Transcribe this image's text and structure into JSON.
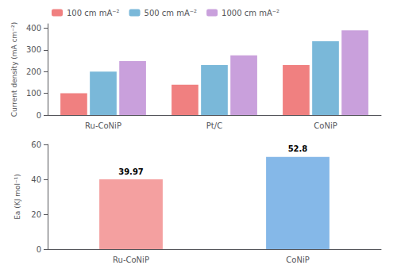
{
  "chart_data": [
    {
      "type": "bar",
      "categories": [
        "Ru-CoNiP",
        "Pt/C",
        "CoNiP"
      ],
      "series": [
        {
          "name": "100 cm mA⁻²",
          "color": "#f08080",
          "values": [
            100,
            140,
            230
          ]
        },
        {
          "name": "500 cm mA⁻²",
          "color": "#7ab8d9",
          "values": [
            200,
            230,
            340
          ]
        },
        {
          "name": "1000 cm mA⁻²",
          "color": "#c9a0dc",
          "values": [
            248,
            275,
            390
          ]
        }
      ],
      "ylabel": "Current density (mA cm⁻²)",
      "ylim": [
        0,
        420
      ],
      "yticks": [
        0,
        100,
        200,
        300,
        400
      ],
      "legend": "upper left",
      "grid": false
    },
    {
      "type": "bar",
      "categories": [
        "Ru-CoNiP",
        "CoNiP"
      ],
      "values": [
        39.97,
        52.8
      ],
      "colors": [
        "#f4a0a0",
        "#85b8e8"
      ],
      "ylabel": "Ea (KJ mol⁻¹)",
      "ylim": [
        0,
        60
      ],
      "yticks": [
        0,
        20,
        40,
        60
      ],
      "data_labels": true,
      "grid": false
    }
  ]
}
